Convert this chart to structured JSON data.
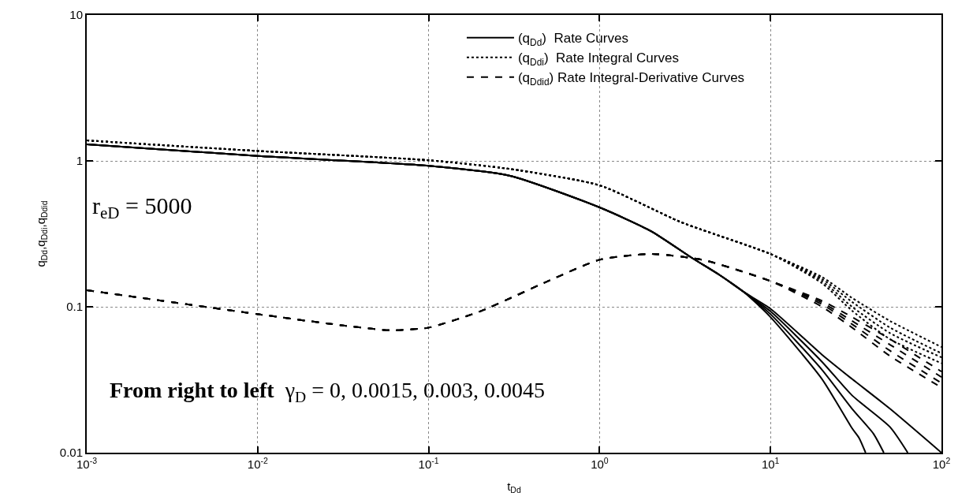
{
  "chart_data": {
    "type": "line",
    "xlabel": "t$_{Dd}$",
    "ylabel": "q$_{Dd}$,q$_{Ddi}$,q$_{Ddid}$",
    "log": "xy",
    "xlim": [
      0.001,
      100
    ],
    "ylim": [
      0.01,
      10
    ],
    "xticks": [
      {
        "value": 0.001,
        "label": "10$^{-3}$"
      },
      {
        "value": 0.01,
        "label": "10$^{-2}$"
      },
      {
        "value": 0.1,
        "label": "10$^{-1}$"
      },
      {
        "value": 1,
        "label": "10$^{0}$"
      },
      {
        "value": 10,
        "label": "10$^{1}$"
      },
      {
        "value": 100,
        "label": "10$^{2}$"
      }
    ],
    "yticks": [
      0.01,
      0.1,
      1,
      10
    ],
    "grid": true,
    "legend": "top right",
    "marker": "none",
    "annotations": [
      "r$_{eD}$ = 5000",
      "From right to left  γ$_{D}$ = 0, 0.0015, 0.003, 0.0045"
    ],
    "series": [
      {
        "name": "(q$_{Dd}$)  Rate Curves",
        "color": "#000000",
        "line_style": "solid",
        "x": [
          0.001,
          0.01,
          0.1,
          0.3,
          1,
          2,
          3.5,
          5,
          7,
          10,
          20,
          30,
          50,
          100
        ],
        "values": [
          1.3,
          1.08,
          0.925,
          0.79,
          0.48,
          0.33,
          0.215,
          0.166,
          0.126,
          0.097,
          0.047,
          0.032,
          0.02,
          0.01
        ]
      },
      {
        "color": "#000000",
        "line_style": "solid",
        "x": [
          0.001,
          0.01,
          0.1,
          0.3,
          1,
          2,
          3.5,
          5,
          7,
          10,
          20,
          30,
          50,
          63.5
        ],
        "values": [
          1.3,
          1.08,
          0.925,
          0.79,
          0.48,
          0.33,
          0.215,
          0.166,
          0.126,
          0.093,
          0.042,
          0.0247,
          0.015,
          0.01
        ]
      },
      {
        "color": "#000000",
        "line_style": "solid",
        "x": [
          0.001,
          0.01,
          0.1,
          0.3,
          1,
          2,
          3.5,
          5,
          7,
          10,
          20,
          30,
          40,
          46
        ],
        "values": [
          1.3,
          1.08,
          0.925,
          0.79,
          0.48,
          0.33,
          0.215,
          0.166,
          0.126,
          0.089,
          0.037,
          0.02,
          0.0135,
          0.01
        ]
      },
      {
        "color": "#000000",
        "line_style": "solid",
        "x": [
          0.001,
          0.01,
          0.1,
          0.3,
          1,
          2,
          3.5,
          5,
          7,
          10,
          20,
          30,
          33,
          36
        ],
        "values": [
          1.3,
          1.08,
          0.925,
          0.79,
          0.48,
          0.33,
          0.215,
          0.166,
          0.126,
          0.085,
          0.032,
          0.0147,
          0.0126,
          0.01
        ]
      },
      {
        "name": "(q$_{Ddi}$)  Rate Integral Curves",
        "color": "#000000",
        "line_style": "dotted",
        "x": [
          0.001,
          0.01,
          0.1,
          0.3,
          1,
          3,
          10,
          20,
          30,
          50,
          100
        ],
        "values": [
          1.38,
          1.17,
          1.01,
          0.88,
          0.68,
          0.38,
          0.23,
          0.16,
          0.115,
          0.08,
          0.053
        ]
      },
      {
        "color": "#000000",
        "line_style": "dotted",
        "x": [
          0.001,
          0.01,
          0.1,
          0.3,
          1,
          3,
          10,
          20,
          30,
          50,
          100
        ],
        "values": [
          1.38,
          1.17,
          1.01,
          0.88,
          0.68,
          0.38,
          0.23,
          0.155,
          0.108,
          0.072,
          0.048
        ]
      },
      {
        "color": "#000000",
        "line_style": "dotted",
        "x": [
          0.001,
          0.01,
          0.1,
          0.3,
          1,
          3,
          10,
          20,
          30,
          50,
          100
        ],
        "values": [
          1.38,
          1.17,
          1.01,
          0.88,
          0.68,
          0.38,
          0.23,
          0.15,
          0.1,
          0.066,
          0.045
        ]
      },
      {
        "color": "#000000",
        "line_style": "dotted",
        "x": [
          0.001,
          0.01,
          0.1,
          0.3,
          1,
          3,
          10,
          20,
          30,
          50,
          100
        ],
        "values": [
          1.38,
          1.17,
          1.01,
          0.88,
          0.68,
          0.38,
          0.23,
          0.145,
          0.094,
          0.06,
          0.041
        ]
      },
      {
        "name": "(q$_{Ddid}$) Rate Integral-Derivative Curves",
        "color": "#000000",
        "line_style": "dashed",
        "x": [
          0.001,
          0.01,
          0.03,
          0.06,
          0.1,
          0.2,
          0.5,
          1,
          2,
          4,
          10,
          20,
          30,
          50,
          100
        ],
        "values": [
          0.13,
          0.089,
          0.075,
          0.069,
          0.072,
          0.093,
          0.15,
          0.21,
          0.23,
          0.21,
          0.15,
          0.11,
          0.085,
          0.06,
          0.036
        ]
      },
      {
        "color": "#000000",
        "line_style": "dashed",
        "x": [
          0.001,
          0.01,
          0.03,
          0.06,
          0.1,
          0.2,
          0.5,
          1,
          2,
          4,
          10,
          20,
          30,
          50,
          100
        ],
        "values": [
          0.13,
          0.089,
          0.075,
          0.069,
          0.072,
          0.093,
          0.15,
          0.21,
          0.23,
          0.21,
          0.15,
          0.107,
          0.08,
          0.055,
          0.033
        ]
      },
      {
        "color": "#000000",
        "line_style": "dashed",
        "x": [
          0.001,
          0.01,
          0.03,
          0.06,
          0.1,
          0.2,
          0.5,
          1,
          2,
          4,
          10,
          20,
          30,
          50,
          100
        ],
        "values": [
          0.13,
          0.089,
          0.075,
          0.069,
          0.072,
          0.093,
          0.15,
          0.21,
          0.23,
          0.21,
          0.15,
          0.104,
          0.076,
          0.05,
          0.03
        ]
      },
      {
        "color": "#000000",
        "line_style": "dashed",
        "x": [
          0.001,
          0.01,
          0.03,
          0.06,
          0.1,
          0.2,
          0.5,
          1,
          2,
          4,
          10,
          20,
          30,
          50,
          100
        ],
        "values": [
          0.13,
          0.089,
          0.075,
          0.069,
          0.072,
          0.093,
          0.15,
          0.21,
          0.23,
          0.21,
          0.15,
          0.1,
          0.072,
          0.046,
          0.028
        ]
      }
    ]
  }
}
